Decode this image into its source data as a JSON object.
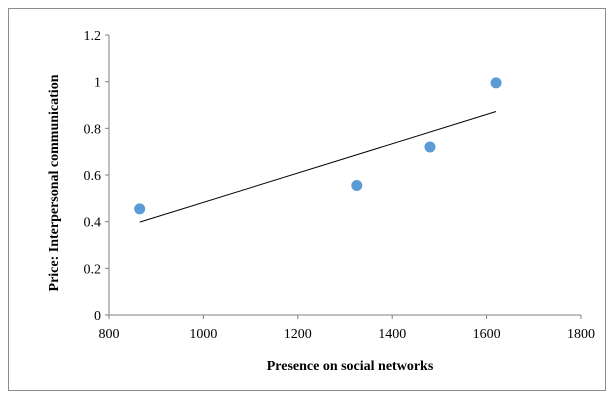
{
  "chart_data": {
    "type": "scatter",
    "title": "",
    "xlabel": "Presence on social networks",
    "ylabel": "Price: Interpersonal communication",
    "xlim": [
      800,
      1800
    ],
    "ylim": [
      0,
      1.2
    ],
    "x_ticks": [
      "800",
      "1000",
      "1200",
      "1400",
      "1600",
      "1800"
    ],
    "y_ticks": [
      "0",
      "0.2",
      "0.4",
      "0.6",
      "0.8",
      "1",
      "1.2"
    ],
    "grid": false,
    "legend": "none",
    "series": [
      {
        "points": [
          {
            "x": 865,
            "y": 0.455
          },
          {
            "x": 1325,
            "y": 0.555
          },
          {
            "x": 1480,
            "y": 0.72
          },
          {
            "x": 1620,
            "y": 0.995
          }
        ],
        "color": "#5b9bd5"
      }
    ],
    "trendline": {
      "type": "linear",
      "from": {
        "x": 865,
        "y": 0.398
      },
      "to": {
        "x": 1620,
        "y": 0.872
      },
      "color": "#000000"
    }
  }
}
